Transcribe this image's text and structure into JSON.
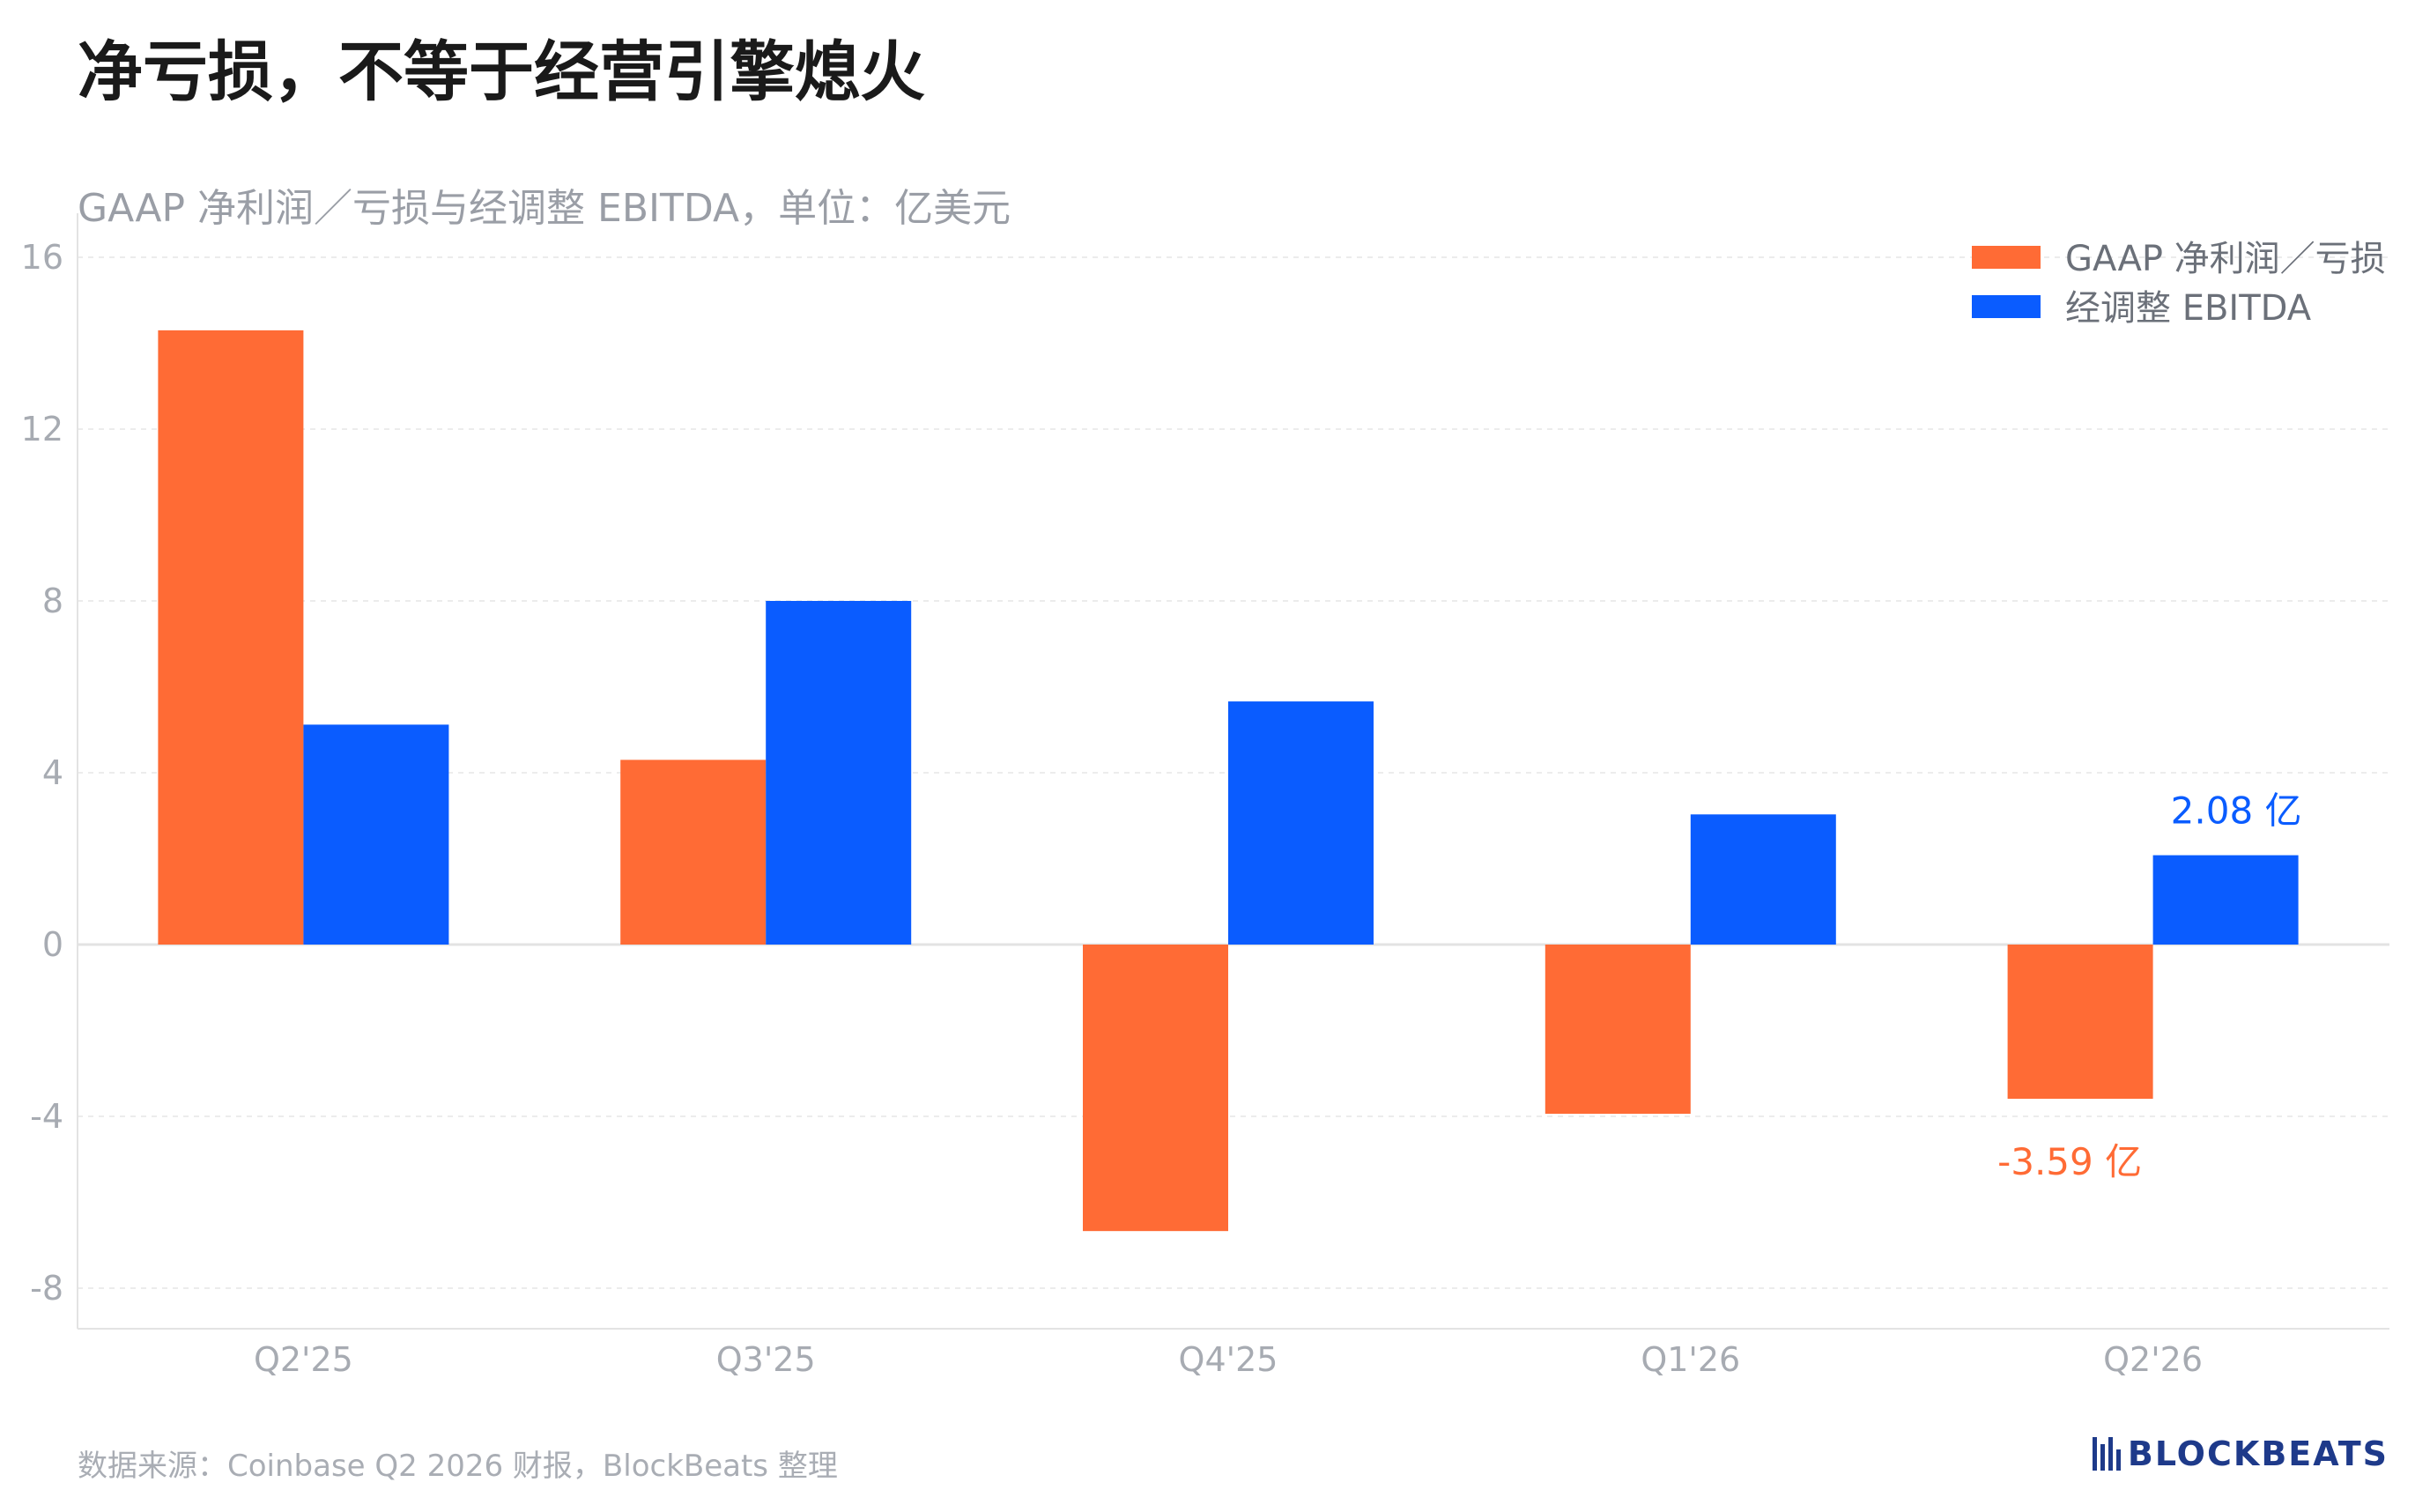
{
  "header": {
    "title": "净亏损，不等于经营引擎熄火",
    "subtitle": "GAAP 净利润／亏损与经调整 EBITDA，单位：亿美元"
  },
  "footer": {
    "source": "数据来源：Coinbase Q2 2026 财报，BlockBeats 整理",
    "logo_text": "BLOCKBEATS"
  },
  "colors": {
    "gaap": "#ff6b35",
    "ebitda": "#0a5cff",
    "grid": "#ececec",
    "axis": "#e3e3e3"
  },
  "chart_data": {
    "type": "bar",
    "categories": [
      "Q2'25",
      "Q3'25",
      "Q4'25",
      "Q1'26",
      "Q2'26"
    ],
    "series": [
      {
        "name": "GAAP 净利润／亏损",
        "values": [
          14.3,
          4.3,
          -6.67,
          -3.94,
          -3.59
        ]
      },
      {
        "name": "经调整 EBITDA",
        "values": [
          5.12,
          8.0,
          5.66,
          3.03,
          2.08
        ]
      }
    ],
    "ylim": [
      -9,
      16
    ],
    "yticks": [
      16,
      12,
      8,
      4,
      0,
      -4,
      -8
    ],
    "grid": true,
    "legend_position": "top-right",
    "annotations": [
      {
        "series": 1,
        "category": 4,
        "text": "2.08 亿"
      },
      {
        "series": 0,
        "category": 4,
        "text": "-3.59 亿"
      }
    ]
  }
}
